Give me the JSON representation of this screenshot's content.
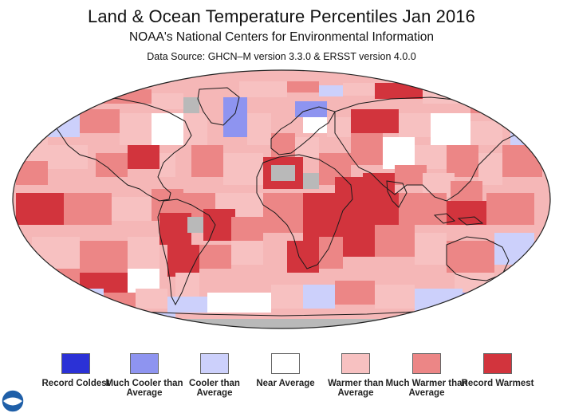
{
  "header": {
    "title": "Land & Ocean Temperature Percentiles Jan 2016",
    "subtitle": "NOAA's National Centers for Environmental Information",
    "source": "Data Source: GHCN–M version 3.3.0 & ERSST version 4.0.0"
  },
  "map": {
    "projection": "robinson",
    "colors": {
      "gray": "#b9b9b9",
      "ocean_base": "#f5b7b7"
    }
  },
  "legend": {
    "items": [
      {
        "label": "Record Coldest",
        "color": "#2b31d6"
      },
      {
        "label": "Much Cooler than Average",
        "color": "#8e94f0"
      },
      {
        "label": "Cooler than Average",
        "color": "#ccd0fb"
      },
      {
        "label": "Near Average",
        "color": "#ffffff"
      },
      {
        "label": "Warmer than Average",
        "color": "#f7c1c1"
      },
      {
        "label": "Much Warmer than Average",
        "color": "#ec8686"
      },
      {
        "label": "Record Warmest",
        "color": "#d2343d"
      }
    ]
  },
  "logo": {
    "name": "noaa-logo",
    "color": "#1f5fa8"
  }
}
